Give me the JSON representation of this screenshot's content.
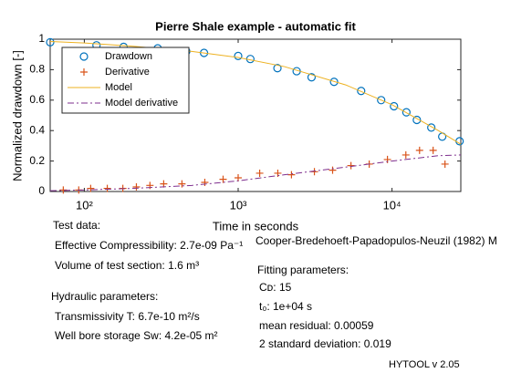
{
  "chart_data": {
    "type": "line",
    "title": "Pierre Shale example - automatic fit",
    "x_label": "Time in seconds",
    "y_label": "Normalized drawdown [-]",
    "xscale": "log",
    "xlim": [
      60,
      28000
    ],
    "ylim": [
      0,
      1
    ],
    "xticks": [
      {
        "value": 100,
        "label": "10²"
      },
      {
        "value": 1000,
        "label": "10³"
      },
      {
        "value": 10000,
        "label": "10⁴"
      }
    ],
    "yticks": [
      0,
      0.2,
      0.4,
      0.6,
      0.8,
      1
    ],
    "legend": "upper left",
    "series": [
      {
        "name": "Drawdown",
        "color": "#0072bd",
        "marker": "circle",
        "x": [
          60,
          120,
          180,
          300,
          460,
          600,
          1000,
          1200,
          1800,
          2400,
          3000,
          4200,
          6300,
          8500,
          10300,
          12400,
          14500,
          18000,
          21200,
          27500
        ],
        "values": [
          0.98,
          0.96,
          0.95,
          0.94,
          0.92,
          0.91,
          0.89,
          0.87,
          0.81,
          0.79,
          0.75,
          0.72,
          0.66,
          0.6,
          0.56,
          0.52,
          0.47,
          0.42,
          0.36,
          0.33
        ]
      },
      {
        "name": "Derivative",
        "color": "#d95319",
        "marker": "plus",
        "x": [
          73,
          92,
          110,
          141,
          178,
          218,
          267,
          328,
          431,
          607,
          798,
          1000,
          1380,
          1810,
          2220,
          3130,
          4110,
          5410,
          7110,
          9340,
          12300,
          15100,
          18500,
          22100
        ],
        "values": [
          0.01,
          0.01,
          0.02,
          0.02,
          0.02,
          0.03,
          0.04,
          0.05,
          0.05,
          0.06,
          0.08,
          0.09,
          0.12,
          0.12,
          0.11,
          0.13,
          0.14,
          0.17,
          0.18,
          0.21,
          0.24,
          0.27,
          0.27,
          0.18
        ]
      },
      {
        "name": "Model",
        "color": "#edb120",
        "line": "solid",
        "x": [
          60,
          100,
          200,
          500,
          1000,
          2000,
          5000,
          10000,
          20000,
          28000
        ],
        "values": [
          0.985,
          0.975,
          0.955,
          0.92,
          0.88,
          0.82,
          0.7,
          0.57,
          0.4,
          0.31
        ]
      },
      {
        "name": "Model derivative",
        "color": "#7e2f8e",
        "line": "dashdot",
        "x": [
          60,
          100,
          200,
          500,
          1000,
          2000,
          5000,
          10000,
          20000,
          28000
        ],
        "values": [
          0.005,
          0.01,
          0.02,
          0.04,
          0.07,
          0.11,
          0.16,
          0.2,
          0.235,
          0.24
        ]
      }
    ]
  },
  "notes": {
    "test_data": "Test data:",
    "compressibility": "Effective Compressibility: 2.7e-09 Pa⁻¹",
    "volume": "Volume of test section: 1.6 m³",
    "hydraulic": "Hydraulic parameters:",
    "transmissivity": "Transmissivity T: 6.7e-10 m²/s",
    "storage": "Well bore storage Sw: 4.2e-05 m²",
    "model_name": "Cooper-Bredehoeft-Papadopulos-Neuzil (1982) M",
    "fitting": "Fitting parameters:",
    "cd": "Cᴅ: 15",
    "t0": "t₀: 1e+04 s",
    "residual": "mean residual: 0.00059",
    "std": "2 standard deviation: 0.019",
    "version": "HYTOOL v 2.05"
  }
}
